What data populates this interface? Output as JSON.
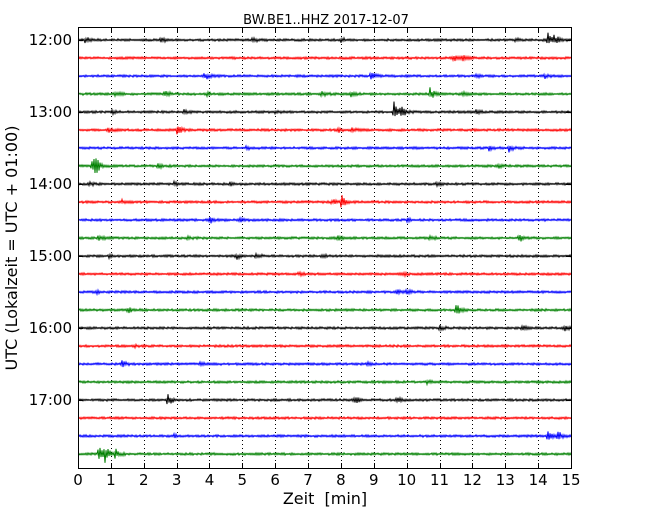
{
  "chart_data": {
    "type": "line",
    "title": "BW.BE1..HHZ 2017-12-07",
    "xlabel": "Zeit  [min]",
    "ylabel": "UTC (Lokalzeit = UTC + 01:00)",
    "xlim": [
      0,
      15
    ],
    "x_ticks": [
      "0",
      "1",
      "2",
      "3",
      "4",
      "5",
      "6",
      "7",
      "8",
      "9",
      "10",
      "11",
      "12",
      "13",
      "14",
      "15"
    ],
    "y_ticks": [
      "12:00",
      "13:00",
      "14:00",
      "15:00",
      "16:00",
      "17:00"
    ],
    "grid": "vertical-dotted",
    "color_cycle": [
      "#000000",
      "#ff0000",
      "#0000ff",
      "#008000"
    ],
    "traces": [
      {
        "start": "12:00",
        "events": [
          [
            0.2,
            1.0
          ],
          [
            2.5,
            0.8
          ],
          [
            5.3,
            0.7
          ],
          [
            8.0,
            0.8
          ],
          [
            13.3,
            0.5
          ],
          [
            14.3,
            2.2
          ],
          [
            14.5,
            1.5
          ]
        ]
      },
      {
        "start": "12:15",
        "events": [
          [
            11.4,
            1.2
          ],
          [
            11.7,
            0.8
          ]
        ]
      },
      {
        "start": "12:30",
        "events": [
          [
            3.8,
            0.6
          ],
          [
            3.9,
            0.6
          ],
          [
            8.9,
            1.3
          ],
          [
            12.1,
            0.7
          ],
          [
            14.2,
            0.6
          ]
        ]
      },
      {
        "start": "12:45",
        "events": [
          [
            1.1,
            0.8
          ],
          [
            2.6,
            1.5
          ],
          [
            3.9,
            0.6
          ],
          [
            7.4,
            0.8
          ],
          [
            8.3,
            0.8
          ],
          [
            10.7,
            2.2
          ],
          [
            11.7,
            0.6
          ]
        ]
      },
      {
        "start": "13:00",
        "events": [
          [
            1.0,
            0.5
          ],
          [
            3.2,
            0.6
          ],
          [
            6.0,
            0.5
          ],
          [
            9.6,
            3.5
          ],
          [
            9.8,
            2.0
          ],
          [
            12.1,
            0.7
          ]
        ]
      },
      {
        "start": "13:15",
        "events": [
          [
            0.9,
            0.6
          ],
          [
            3.0,
            1.4
          ],
          [
            7.9,
            0.8
          ],
          [
            8.3,
            0.6
          ]
        ]
      },
      {
        "start": "13:30",
        "events": [
          [
            5.1,
            0.5
          ],
          [
            12.5,
            0.7
          ],
          [
            13.1,
            1.3
          ]
        ]
      },
      {
        "start": "13:45",
        "events": [
          [
            0.4,
            3.0
          ],
          [
            0.5,
            2.0
          ],
          [
            2.4,
            0.8
          ],
          [
            12.8,
            0.8
          ]
        ]
      },
      {
        "start": "14:00",
        "events": [
          [
            0.3,
            0.6
          ],
          [
            2.9,
            0.6
          ],
          [
            4.6,
            0.7
          ],
          [
            10.9,
            0.6
          ]
        ]
      },
      {
        "start": "14:15",
        "events": [
          [
            1.3,
            0.6
          ],
          [
            7.7,
            1.0
          ],
          [
            8.0,
            2.2
          ]
        ]
      },
      {
        "start": "14:30",
        "events": [
          [
            4.0,
            1.0
          ],
          [
            4.9,
            0.6
          ],
          [
            10.0,
            0.5
          ]
        ]
      },
      {
        "start": "14:45",
        "events": [
          [
            0.6,
            0.8
          ],
          [
            3.3,
            0.5
          ],
          [
            7.9,
            0.8
          ],
          [
            10.7,
            0.6
          ],
          [
            13.4,
            1.6
          ]
        ]
      },
      {
        "start": "15:00",
        "events": [
          [
            0.9,
            0.5
          ],
          [
            4.8,
            1.0
          ],
          [
            5.4,
            0.8
          ],
          [
            7.4,
            0.6
          ]
        ]
      },
      {
        "start": "15:15",
        "events": [
          [
            6.7,
            0.5
          ],
          [
            9.9,
            0.5
          ]
        ]
      },
      {
        "start": "15:30",
        "events": [
          [
            0.5,
            0.6
          ],
          [
            9.7,
            0.6
          ],
          [
            10.0,
            0.8
          ]
        ]
      },
      {
        "start": "15:45",
        "events": [
          [
            1.5,
            1.0
          ],
          [
            11.5,
            2.0
          ]
        ]
      },
      {
        "start": "16:00",
        "events": [
          [
            11.0,
            0.8
          ],
          [
            13.5,
            0.8
          ],
          [
            14.8,
            0.8
          ]
        ]
      },
      {
        "start": "16:15",
        "events": [
          [
            1.7,
            0.5
          ]
        ]
      },
      {
        "start": "16:30",
        "events": [
          [
            1.3,
            1.2
          ],
          [
            3.7,
            0.5
          ],
          [
            8.8,
            0.5
          ]
        ]
      },
      {
        "start": "16:45",
        "events": [
          [
            10.6,
            0.5
          ]
        ]
      },
      {
        "start": "17:00",
        "events": [
          [
            2.7,
            2.0
          ],
          [
            8.4,
            1.2
          ],
          [
            9.7,
            0.8
          ]
        ]
      },
      {
        "start": "17:15",
        "events": []
      },
      {
        "start": "17:30",
        "events": [
          [
            2.9,
            0.5
          ],
          [
            14.3,
            2.0
          ],
          [
            14.6,
            1.5
          ]
        ]
      },
      {
        "start": "17:45",
        "events": [
          [
            0.6,
            3.2
          ],
          [
            0.8,
            2.5
          ],
          [
            1.1,
            1.6
          ]
        ]
      }
    ]
  }
}
